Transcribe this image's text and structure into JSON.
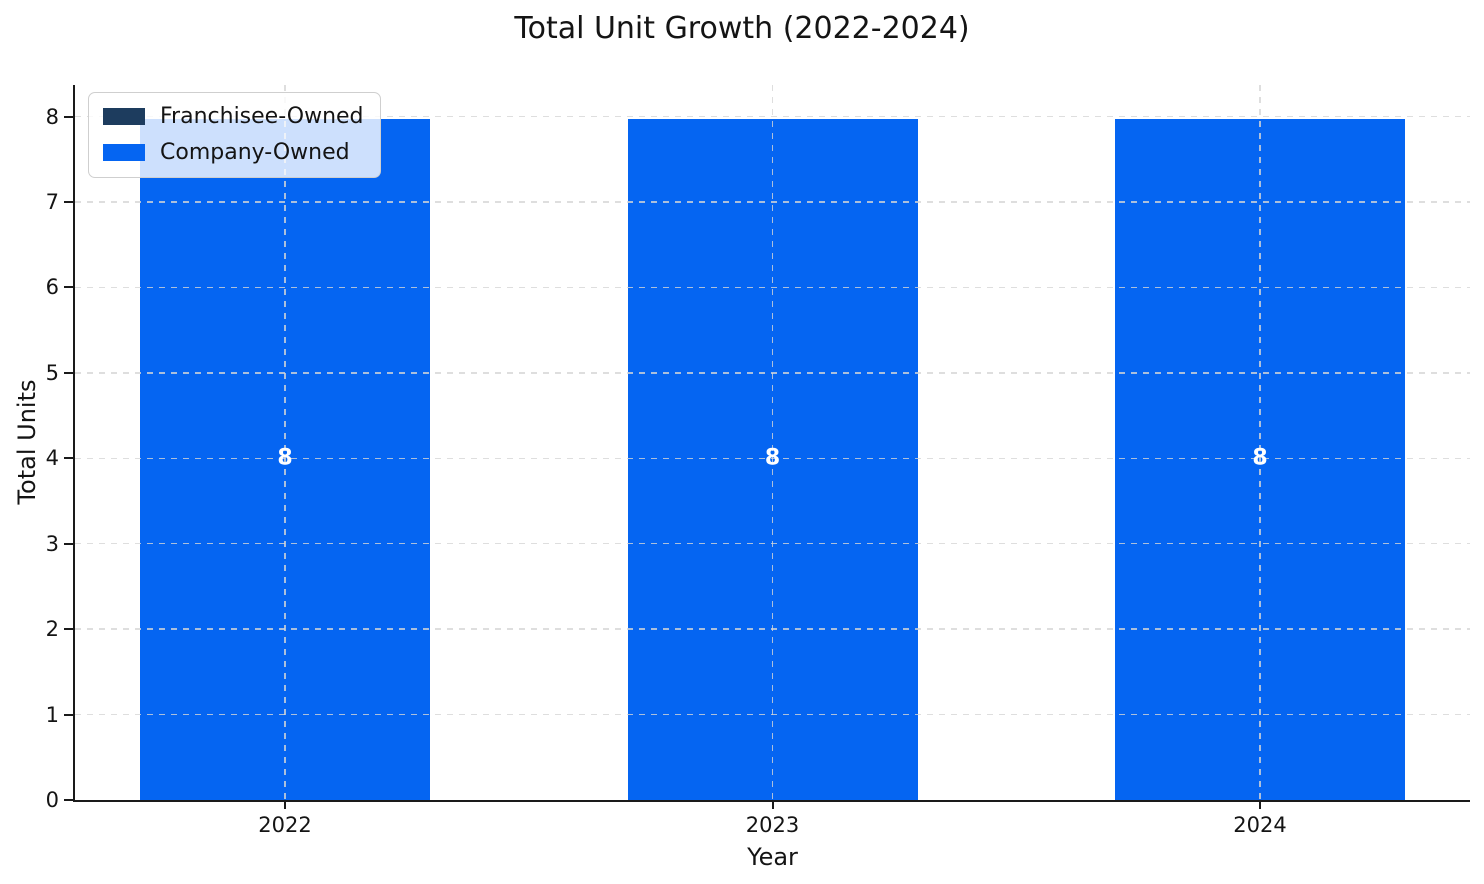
{
  "chart_data": {
    "type": "bar",
    "stacked": true,
    "title": "Total Unit Growth (2022-2024)",
    "xlabel": "Year",
    "ylabel": "Total Units",
    "categories": [
      "2022",
      "2023",
      "2024"
    ],
    "series": [
      {
        "name": "Franchisee-Owned",
        "color": "#1d3c5e",
        "values": [
          0,
          0,
          0
        ]
      },
      {
        "name": "Company-Owned",
        "color": "#0565f2",
        "values": [
          8,
          8,
          8
        ]
      }
    ],
    "bar_total_labels": [
      "8",
      "8",
      "8"
    ],
    "bar_label_color": "#ffffff",
    "ylim": [
      0,
      8.37
    ],
    "yticks": [
      0,
      1,
      2,
      3,
      4,
      5,
      6,
      7,
      8
    ],
    "grid": true,
    "grid_style": "dashed",
    "legend_position": "upper left",
    "background_color": "#ffffff",
    "spine_color": "#1a1a1a"
  }
}
